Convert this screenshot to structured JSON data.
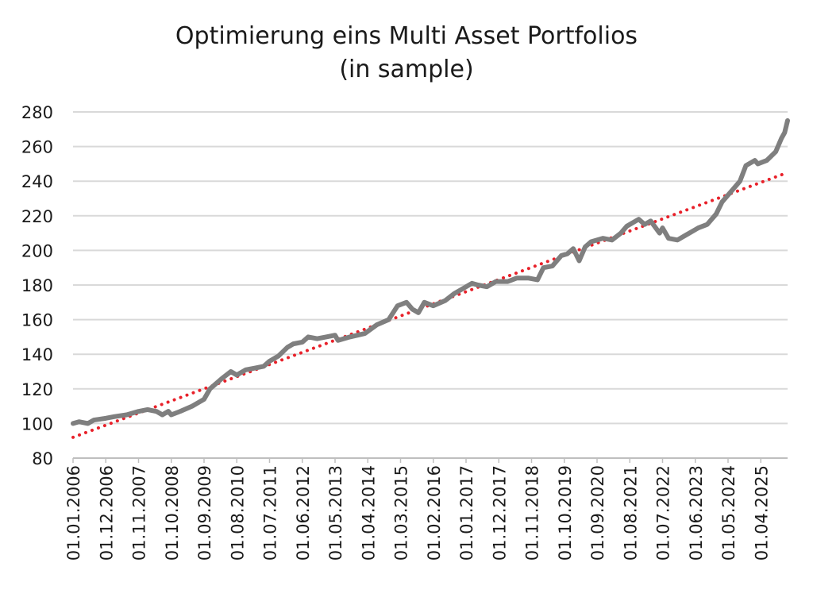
{
  "chart_data": {
    "type": "line",
    "title": "Optimierung eins Multi Asset Portfolios",
    "subtitle": "(in sample)",
    "xlabel": "",
    "ylabel": "",
    "ylim": [
      80,
      280
    ],
    "yticks": [
      80,
      100,
      120,
      140,
      160,
      180,
      200,
      220,
      240,
      260,
      280
    ],
    "xlim": [
      "2006-01",
      "2026-01"
    ],
    "xtick_labels": [
      "01.01.2006",
      "01.12.2006",
      "01.11.2007",
      "01.10.2008",
      "01.09.2009",
      "01.08.2010",
      "01.07.2011",
      "01.06.2012",
      "01.05.2013",
      "01.04.2014",
      "01.03.2015",
      "01.02.2016",
      "01.01.2017",
      "01.12.2017",
      "01.11.2018",
      "01.10.2019",
      "01.09.2020",
      "01.08.2021",
      "01.07.2022",
      "01.06.2023",
      "01.05.2024",
      "01.04.2025"
    ],
    "grid": "horizontal",
    "legend": "none",
    "colors": {
      "series": "#7f7f7f",
      "trend": "#e8212a",
      "grid": "#d9d9d9"
    },
    "series": [
      {
        "x": [
          "2006-01",
          "2006-03",
          "2006-06",
          "2006-08",
          "2006-12",
          "2007-03",
          "2007-07",
          "2007-11",
          "2008-02",
          "2008-05",
          "2008-07",
          "2008-09",
          "2008-10",
          "2009-01",
          "2009-05",
          "2009-09",
          "2009-11",
          "2010-03",
          "2010-06",
          "2010-08",
          "2010-11",
          "2011-02",
          "2011-05",
          "2011-07",
          "2011-10",
          "2012-01",
          "2012-03",
          "2012-06",
          "2012-08",
          "2012-11",
          "2013-02",
          "2013-05",
          "2013-06",
          "2013-10",
          "2014-03",
          "2014-07",
          "2014-11",
          "2015-02",
          "2015-05",
          "2015-07",
          "2015-09",
          "2015-11",
          "2016-02",
          "2016-06",
          "2016-09",
          "2016-11",
          "2017-03",
          "2017-05",
          "2017-08",
          "2017-11",
          "2018-03",
          "2018-06",
          "2018-10",
          "2019-01",
          "2019-03",
          "2019-06",
          "2019-09",
          "2019-11",
          "2020-01",
          "2020-03",
          "2020-05",
          "2020-07",
          "2020-11",
          "2021-02",
          "2021-05",
          "2021-07",
          "2021-10",
          "2021-11",
          "2022-01",
          "2022-03",
          "2022-06",
          "2022-07",
          "2022-09",
          "2022-12",
          "2023-03",
          "2023-05",
          "2023-07",
          "2023-10",
          "2024-01",
          "2024-03",
          "2024-06",
          "2024-09",
          "2024-11",
          "2025-02",
          "2025-03",
          "2025-06",
          "2025-09",
          "2025-11",
          "2025-12",
          "2026-01"
        ],
        "values": [
          100,
          101,
          100,
          102,
          103,
          104,
          105,
          107,
          108,
          107,
          105,
          107,
          105,
          107,
          110,
          114,
          120,
          126,
          130,
          128,
          131,
          132,
          133,
          136,
          139,
          144,
          146,
          147,
          150,
          149,
          150,
          151,
          148,
          150,
          152,
          157,
          160,
          168,
          170,
          166,
          164,
          170,
          168,
          171,
          175,
          177,
          181,
          180,
          179,
          182,
          182,
          184,
          184,
          183,
          190,
          191,
          197,
          198,
          201,
          194,
          202,
          205,
          207,
          206,
          210,
          214,
          217,
          218,
          215,
          217,
          210,
          213,
          207,
          206,
          209,
          211,
          213,
          215,
          221,
          228,
          234,
          240,
          249,
          252,
          250,
          252,
          257,
          265,
          268,
          275
        ]
      }
    ],
    "trendline": {
      "style": "dotted",
      "x": [
        "2006-01",
        "2026-01"
      ],
      "values": [
        92,
        245
      ]
    }
  }
}
